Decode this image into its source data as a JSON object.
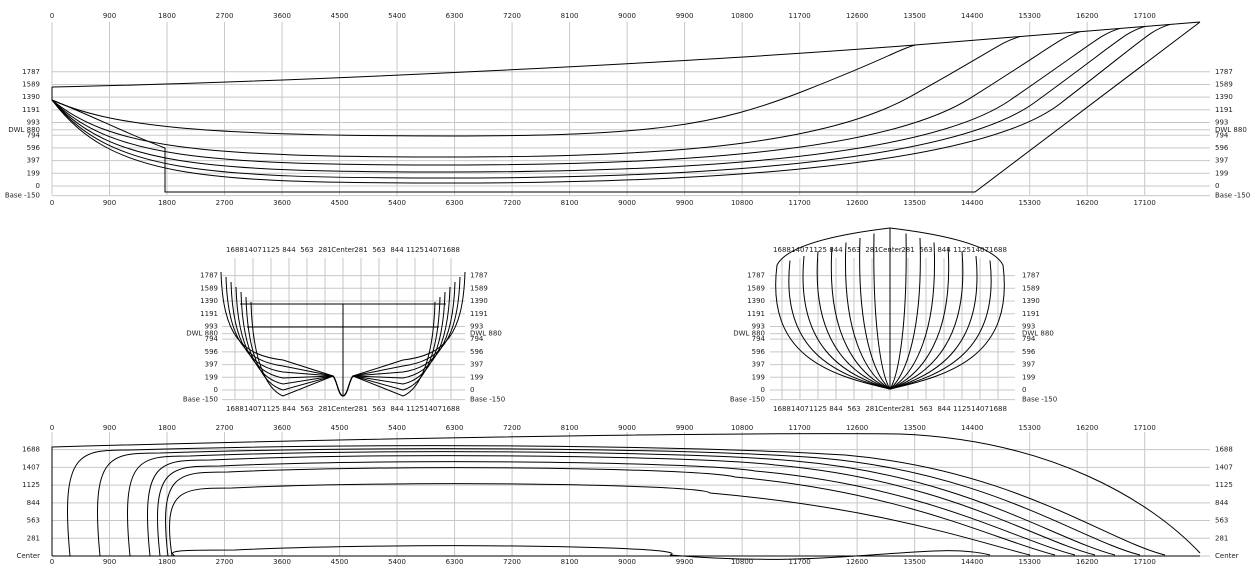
{
  "station_ticks": [
    0,
    900,
    1800,
    2700,
    3600,
    4500,
    5400,
    6300,
    7200,
    8100,
    9000,
    9900,
    10800,
    11700,
    12600,
    13500,
    14400,
    15300,
    16200,
    17100
  ],
  "height_ticks": [
    1787,
    1589,
    1390,
    1191,
    993,
    {
      "value": 880,
      "label": "DWL 880"
    },
    794,
    596,
    397,
    199,
    0,
    {
      "value": -150,
      "label": "Base -150"
    }
  ],
  "halfbreadth_ticks": [
    {
      "value": -1688,
      "label": "1688"
    },
    {
      "value": -1407,
      "label": "1407"
    },
    {
      "value": -1125,
      "label": "1125"
    },
    {
      "value": -844,
      "label": "844"
    },
    {
      "value": -563,
      "label": "563"
    },
    {
      "value": -281,
      "label": "281"
    },
    {
      "value": 0,
      "label": "Center"
    },
    281,
    563,
    844,
    1125,
    1407,
    1688
  ],
  "plan_ticks": [
    1688,
    1407,
    1125,
    844,
    563,
    281,
    {
      "value": 0,
      "label": "Center"
    }
  ]
}
